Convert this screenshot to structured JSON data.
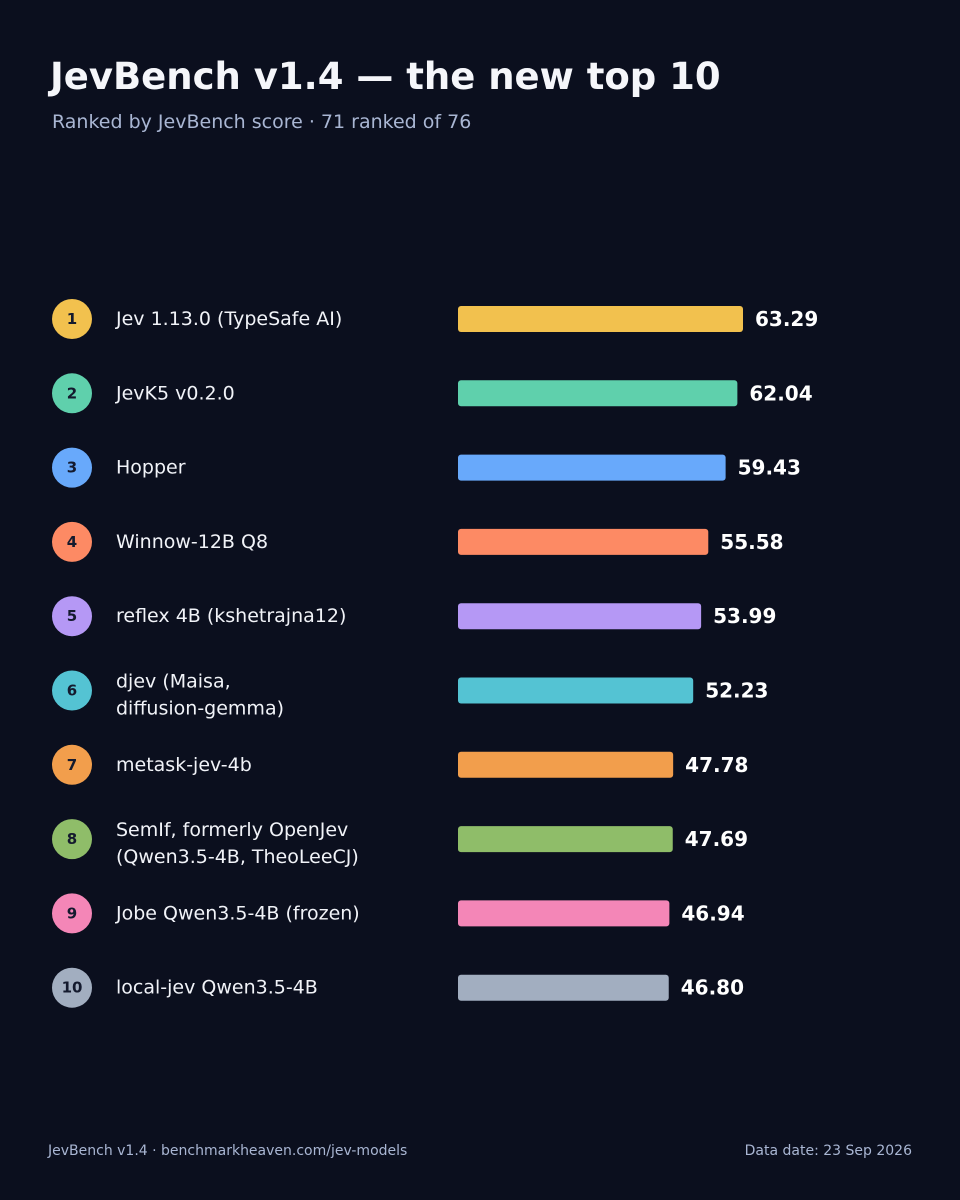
{
  "header": {
    "title": "JevBench v1.4 — the new top 10",
    "subtitle": "Ranked by JevBench score · 71 ranked of 76"
  },
  "footer": {
    "source": "JevBench v1.4 · benchmarkheaven.com/jev-models",
    "date": "Data date: 23 Sep 2026"
  },
  "chart_data": {
    "type": "bar",
    "orientation": "horizontal",
    "title": "JevBench v1.4 — the new top 10",
    "subtitle": "Ranked by JevBench score · 71 ranked of 76",
    "xlabel": "",
    "ylabel": "",
    "xlim": [
      0,
      100
    ],
    "grid": false,
    "legend": "none",
    "colors": {
      "background": "#0b0f1e",
      "rank_text": "#141a2e",
      "label_text": "#f1f3f8",
      "value_text": "#ffffff"
    },
    "rows": [
      {
        "rank": "1",
        "name_lines": [
          "Jev 1.13.0 (TypeSafe AI)"
        ],
        "value": 63.29,
        "value_label": "63.29",
        "color": "#f2c14e"
      },
      {
        "rank": "2",
        "name_lines": [
          "JevK5 v0.2.0"
        ],
        "value": 62.04,
        "value_label": "62.04",
        "color": "#5fd0ac"
      },
      {
        "rank": "3",
        "name_lines": [
          "Hopper"
        ],
        "value": 59.43,
        "value_label": "59.43",
        "color": "#68a9fb"
      },
      {
        "rank": "4",
        "name_lines": [
          "Winnow-12B Q8"
        ],
        "value": 55.58,
        "value_label": "55.58",
        "color": "#fd8a64"
      },
      {
        "rank": "5",
        "name_lines": [
          "reflex 4B (kshetrajna12)"
        ],
        "value": 53.99,
        "value_label": "53.99",
        "color": "#b598f5"
      },
      {
        "rank": "6",
        "name_lines": [
          "djev (Maisa,",
          "diffusion-gemma)"
        ],
        "value": 52.23,
        "value_label": "52.23",
        "color": "#54c3d3"
      },
      {
        "rank": "7",
        "name_lines": [
          "metask-jev-4b"
        ],
        "value": 47.78,
        "value_label": "47.78",
        "color": "#f29e4c"
      },
      {
        "rank": "8",
        "name_lines": [
          "SemIf, formerly OpenJev",
          "(Qwen3.5-4B, TheoLeeCJ)"
        ],
        "value": 47.69,
        "value_label": "47.69",
        "color": "#8fbd69"
      },
      {
        "rank": "9",
        "name_lines": [
          "Jobe Qwen3.5-4B (frozen)"
        ],
        "value": 46.94,
        "value_label": "46.94",
        "color": "#f486b7"
      },
      {
        "rank": "10",
        "name_lines": [
          "local-jev Qwen3.5-4B"
        ],
        "value": 46.8,
        "value_label": "46.80",
        "color": "#a2aec0"
      }
    ]
  }
}
